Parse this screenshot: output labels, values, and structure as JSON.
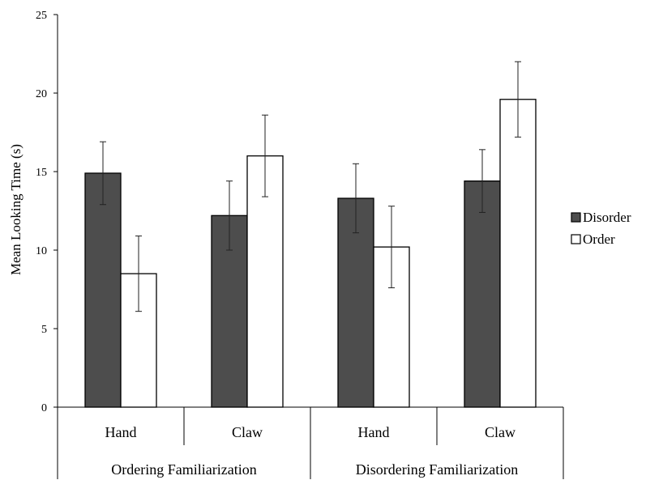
{
  "chart_data": {
    "type": "bar",
    "ylabel": "Mean Looking Time (s)",
    "ylim": [
      0,
      25
    ],
    "yticks": [
      0,
      5,
      10,
      15,
      20,
      25
    ],
    "grid": false,
    "legend_placement": "right",
    "groups": [
      "Ordering Familiarization",
      "Disordering Familiarization"
    ],
    "categories": [
      "Hand",
      "Claw",
      "Hand",
      "Claw"
    ],
    "series": [
      {
        "name": "Disorder",
        "color": "#4d4d4d",
        "values": [
          14.9,
          12.2,
          13.3,
          14.4
        ],
        "errors": [
          2.0,
          2.2,
          2.2,
          2.0
        ]
      },
      {
        "name": "Order",
        "color": "#ffffff",
        "values": [
          8.5,
          16.0,
          10.2,
          19.6
        ],
        "errors": [
          2.4,
          2.6,
          2.6,
          2.4
        ]
      }
    ]
  }
}
